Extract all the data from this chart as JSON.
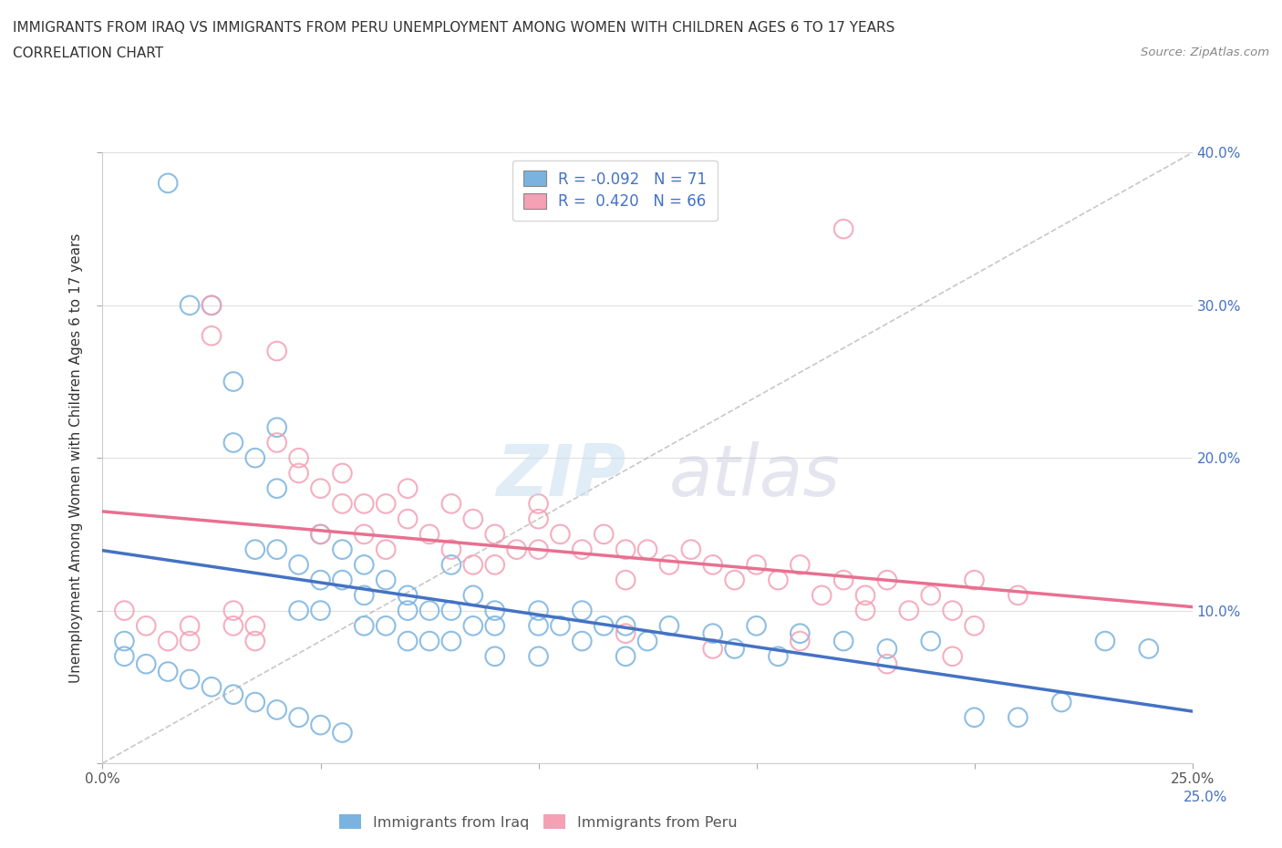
{
  "title_line1": "IMMIGRANTS FROM IRAQ VS IMMIGRANTS FROM PERU UNEMPLOYMENT AMONG WOMEN WITH CHILDREN AGES 6 TO 17 YEARS",
  "title_line2": "CORRELATION CHART",
  "source_text": "Source: ZipAtlas.com",
  "ylabel": "Unemployment Among Women with Children Ages 6 to 17 years",
  "xlim": [
    0.0,
    0.25
  ],
  "ylim": [
    0.0,
    0.4
  ],
  "xticks": [
    0.0,
    0.05,
    0.1,
    0.15,
    0.2,
    0.25
  ],
  "yticks": [
    0.0,
    0.1,
    0.2,
    0.3,
    0.4
  ],
  "iraq_color": "#7ab3e0",
  "peru_color": "#f4a0b5",
  "iraq_line_color": "#4472c4",
  "peru_line_color": "#e87090",
  "iraq_R": -0.092,
  "iraq_N": 71,
  "peru_R": 0.42,
  "peru_N": 66,
  "iraq_scatter_x": [
    0.005,
    0.015,
    0.02,
    0.025,
    0.03,
    0.03,
    0.035,
    0.035,
    0.04,
    0.04,
    0.04,
    0.045,
    0.045,
    0.05,
    0.05,
    0.05,
    0.055,
    0.055,
    0.06,
    0.06,
    0.06,
    0.065,
    0.065,
    0.07,
    0.07,
    0.07,
    0.075,
    0.075,
    0.08,
    0.08,
    0.08,
    0.085,
    0.085,
    0.09,
    0.09,
    0.09,
    0.1,
    0.1,
    0.1,
    0.105,
    0.11,
    0.11,
    0.115,
    0.12,
    0.12,
    0.125,
    0.13,
    0.14,
    0.145,
    0.15,
    0.155,
    0.16,
    0.17,
    0.18,
    0.19,
    0.2,
    0.21,
    0.22,
    0.23,
    0.24,
    0.005,
    0.01,
    0.015,
    0.02,
    0.025,
    0.03,
    0.035,
    0.04,
    0.045,
    0.05,
    0.055
  ],
  "iraq_scatter_y": [
    0.08,
    0.38,
    0.3,
    0.3,
    0.25,
    0.21,
    0.2,
    0.14,
    0.22,
    0.18,
    0.14,
    0.13,
    0.1,
    0.15,
    0.12,
    0.1,
    0.14,
    0.12,
    0.13,
    0.11,
    0.09,
    0.12,
    0.09,
    0.11,
    0.1,
    0.08,
    0.1,
    0.08,
    0.13,
    0.1,
    0.08,
    0.11,
    0.09,
    0.1,
    0.09,
    0.07,
    0.1,
    0.09,
    0.07,
    0.09,
    0.1,
    0.08,
    0.09,
    0.09,
    0.07,
    0.08,
    0.09,
    0.085,
    0.075,
    0.09,
    0.07,
    0.085,
    0.08,
    0.075,
    0.08,
    0.03,
    0.03,
    0.04,
    0.08,
    0.075,
    0.07,
    0.065,
    0.06,
    0.055,
    0.05,
    0.045,
    0.04,
    0.035,
    0.03,
    0.025,
    0.02
  ],
  "peru_scatter_x": [
    0.005,
    0.01,
    0.015,
    0.02,
    0.02,
    0.025,
    0.025,
    0.03,
    0.03,
    0.035,
    0.035,
    0.04,
    0.04,
    0.045,
    0.045,
    0.05,
    0.05,
    0.055,
    0.055,
    0.06,
    0.06,
    0.065,
    0.065,
    0.07,
    0.07,
    0.075,
    0.08,
    0.08,
    0.085,
    0.085,
    0.09,
    0.09,
    0.095,
    0.1,
    0.1,
    0.105,
    0.11,
    0.115,
    0.12,
    0.12,
    0.125,
    0.13,
    0.135,
    0.14,
    0.145,
    0.15,
    0.155,
    0.16,
    0.165,
    0.17,
    0.175,
    0.18,
    0.185,
    0.19,
    0.195,
    0.2,
    0.21,
    0.1,
    0.12,
    0.14,
    0.16,
    0.17,
    0.175,
    0.18,
    0.195,
    0.2
  ],
  "peru_scatter_y": [
    0.1,
    0.09,
    0.08,
    0.09,
    0.08,
    0.3,
    0.28,
    0.1,
    0.09,
    0.09,
    0.08,
    0.27,
    0.21,
    0.2,
    0.19,
    0.18,
    0.15,
    0.19,
    0.17,
    0.17,
    0.15,
    0.17,
    0.14,
    0.18,
    0.16,
    0.15,
    0.17,
    0.14,
    0.16,
    0.13,
    0.15,
    0.13,
    0.14,
    0.16,
    0.14,
    0.15,
    0.14,
    0.15,
    0.14,
    0.12,
    0.14,
    0.13,
    0.14,
    0.13,
    0.12,
    0.13,
    0.12,
    0.13,
    0.11,
    0.12,
    0.11,
    0.12,
    0.1,
    0.11,
    0.1,
    0.12,
    0.11,
    0.17,
    0.085,
    0.075,
    0.08,
    0.35,
    0.1,
    0.065,
    0.07,
    0.09
  ]
}
